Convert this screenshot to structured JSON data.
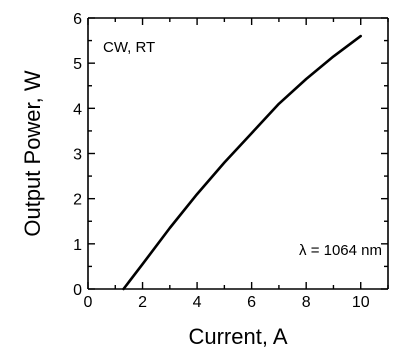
{
  "chart_data": {
    "type": "line",
    "xlabel": "Current, A",
    "ylabel": "Output Power, W",
    "xlim": [
      0,
      11
    ],
    "ylim": [
      0,
      6
    ],
    "x_ticks": [
      0,
      2,
      4,
      6,
      8,
      10
    ],
    "y_ticks": [
      0,
      1,
      2,
      3,
      4,
      5,
      6
    ],
    "grid": false,
    "annotations": [
      "CW, RT",
      "λ = 1064 nm"
    ],
    "series": [
      {
        "x": [
          1.3,
          2.0,
          3.0,
          4.0,
          5.0,
          6.0,
          7.0,
          8.0,
          9.0,
          10.0
        ],
        "y": [
          0.0,
          0.55,
          1.35,
          2.1,
          2.8,
          3.45,
          4.1,
          4.65,
          5.15,
          5.6
        ]
      }
    ]
  }
}
